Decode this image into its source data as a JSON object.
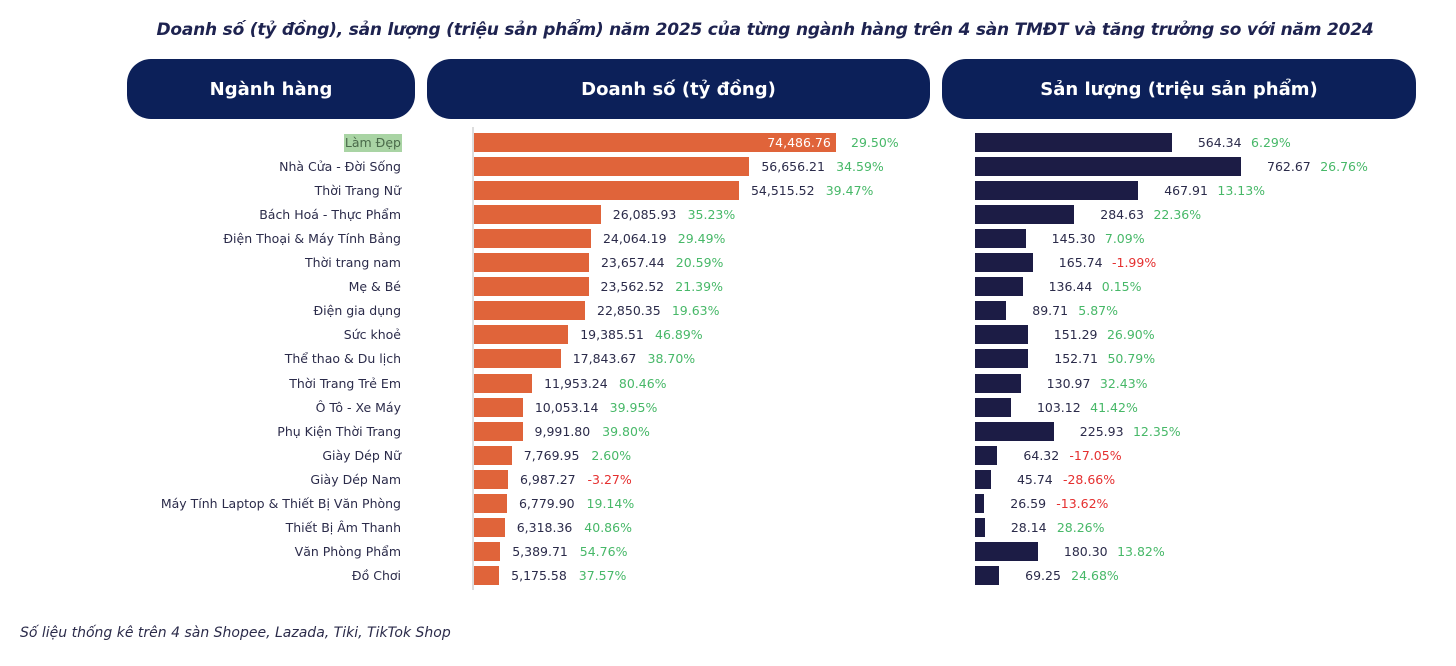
{
  "title": "Doanh số (tỷ đồng), sản lượng (triệu sản phẩm) năm 2025 của từng ngành hàng trên 4 sàn TMĐT và tăng trưởng so với năm 2024",
  "headers": {
    "category": "Ngành hàng",
    "revenue": "Doanh số (tỷ đồng)",
    "volume": "Sản lượng (triệu sản phẩm)"
  },
  "footnote": "Số liệu thống kê trên 4 sàn Shopee, Lazada, Tiki, TikTok Shop",
  "colors": {
    "revenue_bar": "#e0643a",
    "volume_bar": "#1c1c45",
    "header": "#0c2059",
    "positive": "#47b868",
    "negative": "#e53030",
    "highlight": "#a9d4a4"
  },
  "chart_data": {
    "type": "bar",
    "orientation": "horizontal",
    "highlighted_category": "Làm Đẹp",
    "categories": [
      "Làm Đẹp",
      "Nhà Cửa - Đời Sống",
      "Thời Trang Nữ",
      "Bách Hoá - Thực Phẩm",
      "Điện Thoại & Máy Tính Bảng",
      "Thời trang nam",
      "Mẹ & Bé",
      "Điện gia dụng",
      "Sức khoẻ",
      "Thể thao & Du lịch",
      "Thời Trang Trẻ Em",
      "Ô Tô - Xe Máy",
      "Phụ Kiện Thời Trang",
      "Giày Dép Nữ",
      "Giày Dép Nam",
      "Máy Tính Laptop & Thiết Bị Văn Phòng",
      "Thiết Bị Âm Thanh",
      "Văn Phòng Phẩm",
      "Đồ Chơi"
    ],
    "series": [
      {
        "name": "Doanh số (tỷ đồng)",
        "values": [
          74486.76,
          56656.21,
          54515.52,
          26085.93,
          24064.19,
          23657.44,
          23562.52,
          22850.35,
          19385.51,
          17843.67,
          11953.24,
          10053.14,
          9991.8,
          7769.95,
          6987.27,
          6779.9,
          6318.36,
          5389.71,
          5175.58
        ],
        "labels": [
          "74,486.76",
          "56,656.21",
          "54,515.52",
          "26,085.93",
          "24,064.19",
          "23,657.44",
          "23,562.52",
          "22,850.35",
          "19,385.51",
          "17,843.67",
          "11,953.24",
          "10,053.14",
          "9,991.80",
          "7,769.95",
          "6,987.27",
          "6,779.90",
          "6,318.36",
          "5,389.71",
          "5,175.58"
        ],
        "growth": [
          "29.50%",
          "34.59%",
          "39.47%",
          "35.23%",
          "29.49%",
          "20.59%",
          "21.39%",
          "19.63%",
          "46.89%",
          "38.70%",
          "80.46%",
          "39.95%",
          "39.80%",
          "2.60%",
          "-3.27%",
          "19.14%",
          "40.86%",
          "54.76%",
          "37.57%"
        ]
      },
      {
        "name": "Sản lượng (triệu sản phẩm)",
        "values": [
          564.34,
          762.67,
          467.91,
          284.63,
          145.3,
          165.74,
          136.44,
          89.71,
          151.29,
          152.71,
          130.97,
          103.12,
          225.93,
          64.32,
          45.74,
          26.59,
          28.14,
          180.3,
          69.25
        ],
        "labels": [
          "564.34",
          "762.67",
          "467.91",
          "284.63",
          "145.30",
          "165.74",
          "136.44",
          "89.71",
          "151.29",
          "152.71",
          "130.97",
          "103.12",
          "225.93",
          "64.32",
          "45.74",
          "26.59",
          "28.14",
          "180.30",
          "69.25"
        ],
        "growth": [
          "6.29%",
          "26.76%",
          "13.13%",
          "22.36%",
          "7.09%",
          "-1.99%",
          "0.15%",
          "5.87%",
          "26.90%",
          "50.79%",
          "32.43%",
          "41.42%",
          "12.35%",
          "-17.05%",
          "-28.66%",
          "-13.62%",
          "28.26%",
          "13.82%",
          "24.68%"
        ]
      }
    ]
  }
}
